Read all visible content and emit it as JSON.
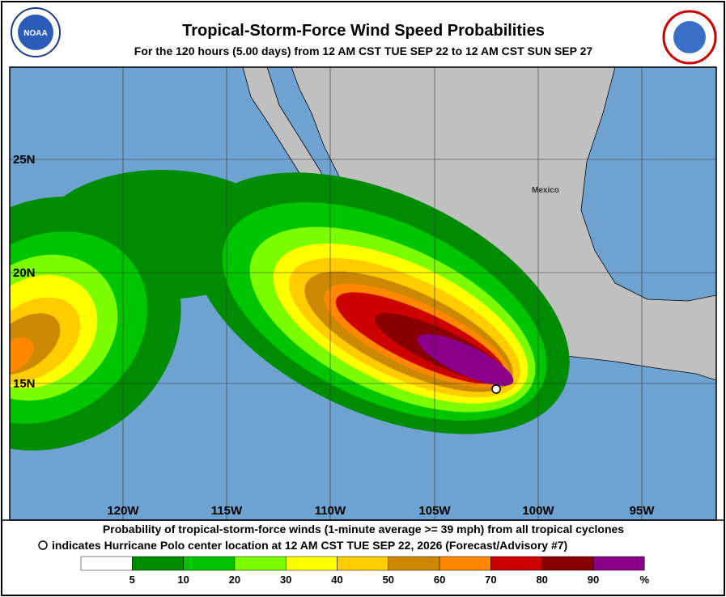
{
  "header": {
    "title": "Tropical-Storm-Force Wind Speed Probabilities",
    "subtitle": "For the 120 hours (5.00 days) from 12 AM CST TUE SEP 22 to 12 AM CST SUN SEP 27"
  },
  "map": {
    "lat_labels": [
      "25N",
      "20N",
      "15N"
    ],
    "lon_labels": [
      "120W",
      "115W",
      "110W",
      "105W",
      "100W",
      "95W"
    ],
    "place": "Mexico"
  },
  "footer": {
    "line1": "Probability of tropical-storm-force winds (1-minute average >= 39 mph) from all tropical cyclones",
    "line2": "indicates Hurricane Polo center location at 12 AM CST TUE SEP 22, 2026 (Forecast/Advisory #7)"
  },
  "colorbar": {
    "labels": [
      "5",
      "10",
      "20",
      "30",
      "40",
      "50",
      "60",
      "70",
      "80",
      "90",
      "%"
    ]
  }
}
